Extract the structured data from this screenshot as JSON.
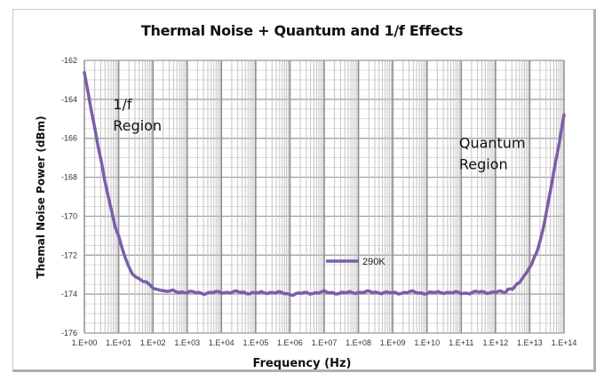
{
  "chart_data": {
    "type": "line",
    "title": "Thermal Noise + Quantum and 1/f Effects",
    "xlabel": "Frequency (Hz)",
    "ylabel": "Themal Noise Power (dBm)",
    "xscale": "log",
    "xlim_exponent": [
      0,
      14
    ],
    "ylim": [
      -176,
      -162
    ],
    "x_tick_labels": [
      "1.E+00",
      "1.E+01",
      "1.E+02",
      "1.E+03",
      "1.E+04",
      "1.E+05",
      "1.E+06",
      "1.E+07",
      "1.E+08",
      "1.E+09",
      "1.E+10",
      "1.E+11",
      "1.E+12",
      "1.E+13",
      "1.E+14"
    ],
    "y_ticks": [
      -162,
      -164,
      -166,
      -168,
      -170,
      -172,
      -174,
      -176
    ],
    "grid": true,
    "legend": {
      "position": "center",
      "entries": [
        "290K"
      ]
    },
    "annotations": [
      {
        "lines": [
          "1/f",
          "Region"
        ],
        "near_x_exponent": 1.2,
        "near_y": -164.5
      },
      {
        "lines": [
          "Quantum",
          "Region"
        ],
        "near_x_exponent": 11.3,
        "near_y": -166.5
      }
    ],
    "series": [
      {
        "name": "290K",
        "color": "#7b5ea7",
        "x_exponent": [
          0,
          0.1,
          0.2,
          0.3,
          0.4,
          0.5,
          0.6,
          0.7,
          0.8,
          0.9,
          1.0,
          1.1,
          1.2,
          1.3,
          1.4,
          1.5,
          1.6,
          1.7,
          1.8,
          1.9,
          2.0,
          2.2,
          2.5,
          3.0,
          3.5,
          4.0,
          4.5,
          5.0,
          5.5,
          6.0,
          6.5,
          7.0,
          7.5,
          8.0,
          8.5,
          9.0,
          9.5,
          10.0,
          10.5,
          11.0,
          11.5,
          12.0,
          12.3,
          12.5,
          12.7,
          12.9,
          13.0,
          13.2,
          13.4,
          13.6,
          13.8,
          14.0
        ],
        "y": [
          -162.7,
          -163.6,
          -164.6,
          -165.5,
          -166.4,
          -167.3,
          -168.2,
          -169.0,
          -169.8,
          -170.5,
          -171.0,
          -171.6,
          -172.1,
          -172.6,
          -172.9,
          -173.1,
          -173.2,
          -173.3,
          -173.4,
          -173.5,
          -173.7,
          -173.8,
          -173.85,
          -173.9,
          -173.95,
          -173.9,
          -173.9,
          -173.95,
          -173.9,
          -174.0,
          -173.95,
          -173.9,
          -173.95,
          -173.9,
          -173.9,
          -173.95,
          -173.9,
          -173.95,
          -173.9,
          -173.95,
          -173.9,
          -173.9,
          -173.85,
          -173.7,
          -173.4,
          -172.9,
          -172.6,
          -171.9,
          -170.6,
          -168.7,
          -166.8,
          -164.8
        ]
      }
    ]
  }
}
